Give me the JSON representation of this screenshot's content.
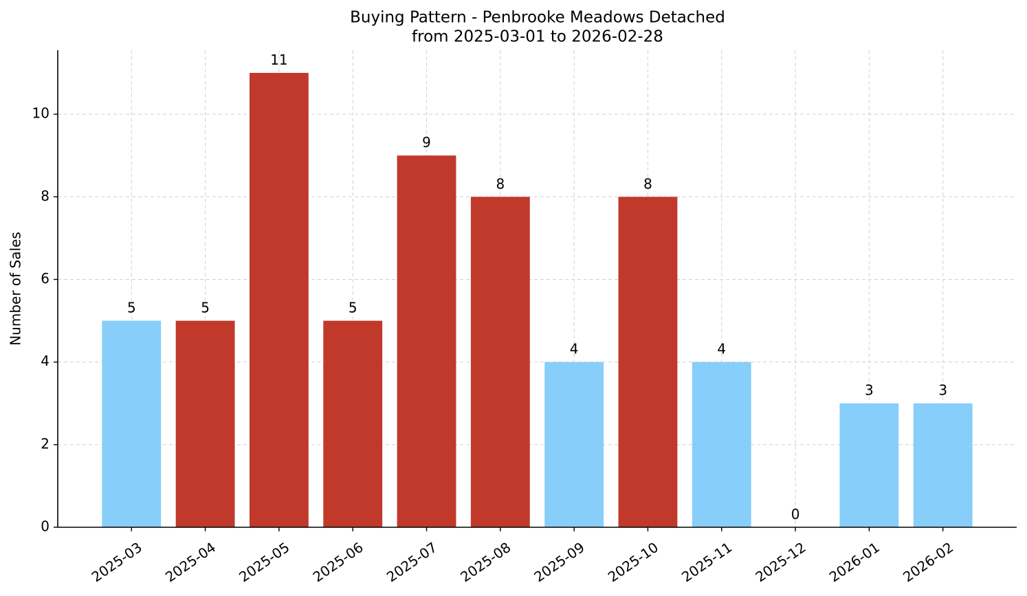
{
  "chart_data": {
    "type": "bar",
    "title": [
      "Buying Pattern - Penbrooke Meadows Detached",
      "from 2025-03-01 to 2026-02-28"
    ],
    "y_label": "Number of Sales",
    "categories": [
      "2025-03",
      "2025-04",
      "2025-05",
      "2025-06",
      "2025-07",
      "2025-08",
      "2025-09",
      "2025-10",
      "2025-11",
      "2025-12",
      "2026-01",
      "2026-02"
    ],
    "values": [
      5,
      5,
      11,
      5,
      9,
      8,
      4,
      8,
      4,
      0,
      3,
      3
    ],
    "colors": [
      "#87cefa",
      "#c0392b",
      "#c0392b",
      "#c0392b",
      "#c0392b",
      "#c0392b",
      "#87cefa",
      "#c0392b",
      "#87cefa",
      "#87cefa",
      "#87cefa",
      "#87cefa"
    ],
    "ylim": [
      0,
      11.55
    ],
    "yticks": [
      0,
      2,
      4,
      6,
      8,
      10
    ],
    "grid": true
  }
}
